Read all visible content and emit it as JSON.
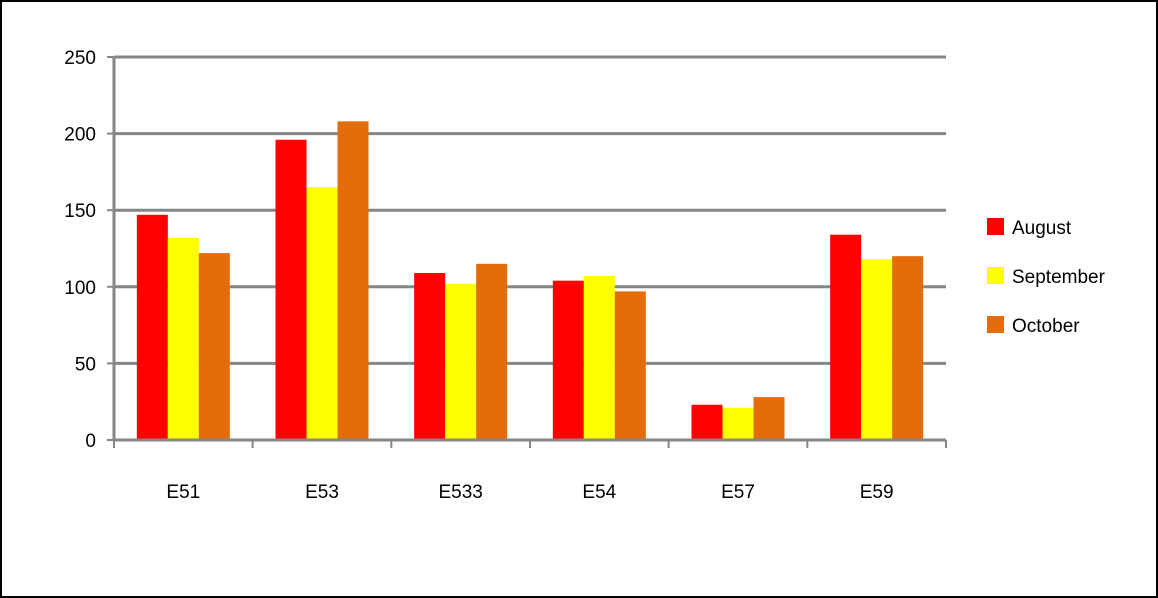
{
  "chart_data": {
    "type": "bar",
    "title": "",
    "xlabel": "",
    "ylabel": "",
    "ylim": [
      0,
      250
    ],
    "yticks": [
      0,
      50,
      100,
      150,
      200,
      250
    ],
    "grid": true,
    "legend_position": "right",
    "categories": [
      "E51",
      "E53",
      "E533",
      "E54",
      "E57",
      "E59"
    ],
    "series": [
      {
        "name": "August",
        "color": "#ff0000",
        "values": [
          147,
          196,
          109,
          104,
          23,
          134
        ]
      },
      {
        "name": "September",
        "color": "#ffff00",
        "values": [
          132,
          165,
          102,
          107,
          21,
          118
        ]
      },
      {
        "name": "October",
        "color": "#e46c0a",
        "values": [
          122,
          208,
          115,
          97,
          28,
          120
        ]
      }
    ]
  }
}
